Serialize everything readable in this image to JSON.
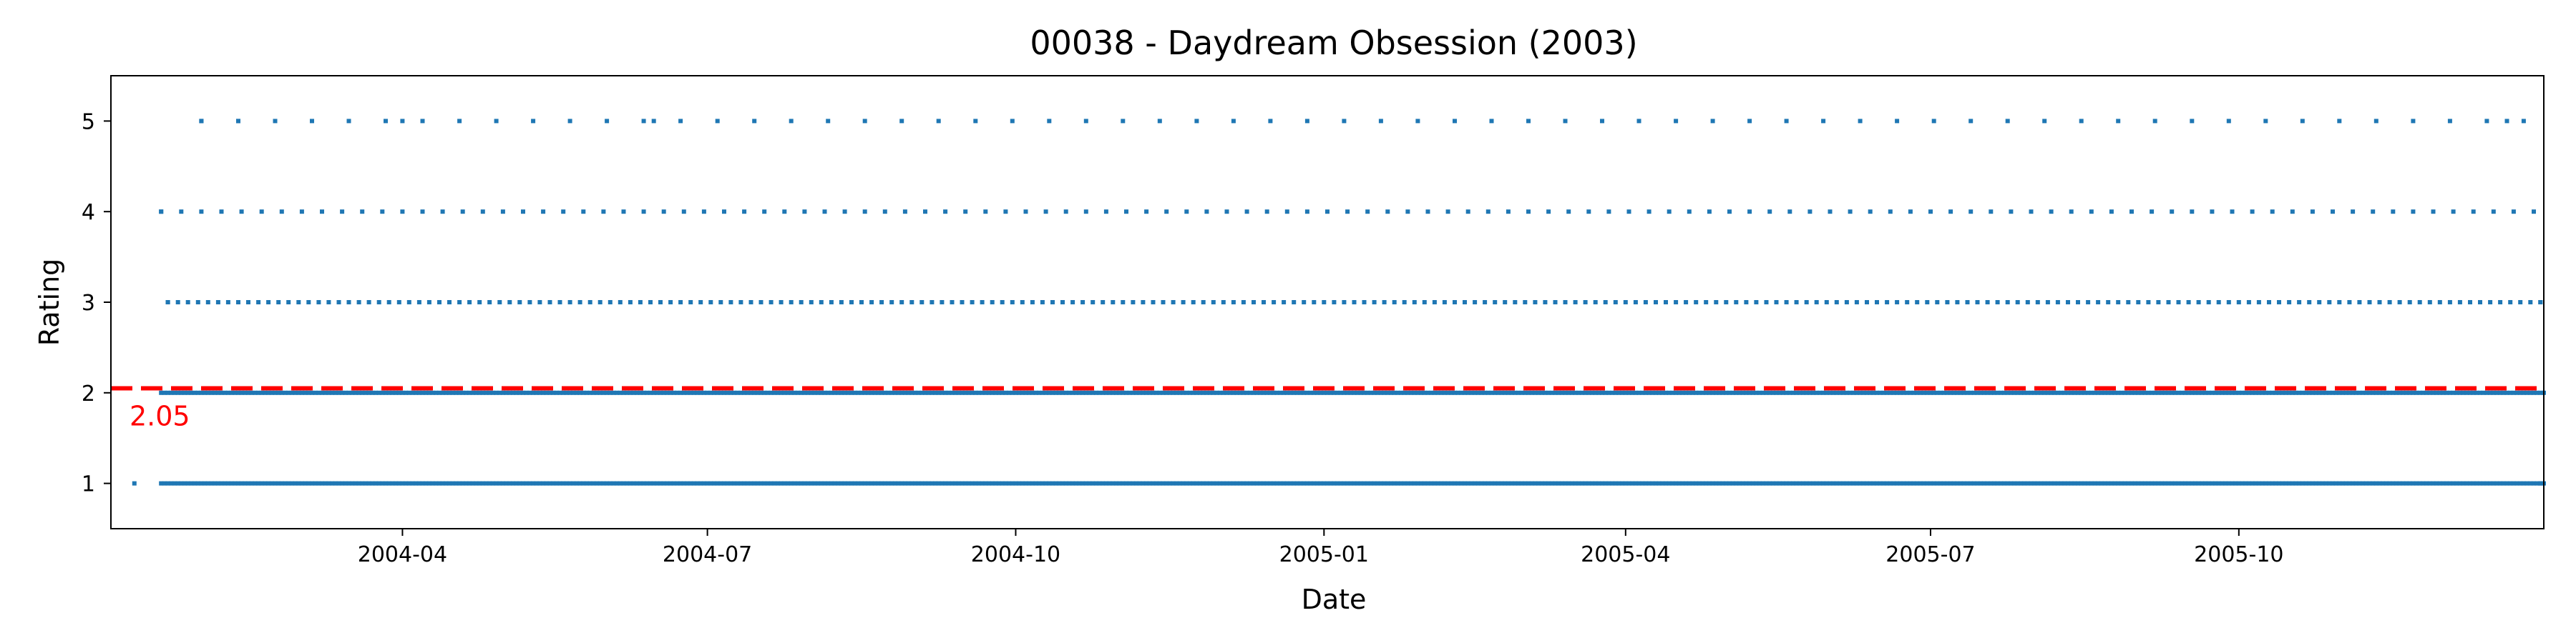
{
  "chart_data": {
    "type": "scatter",
    "title": "00038 - Daydream Obsession (2003)",
    "xlabel": "Date",
    "ylabel": "Rating",
    "xlim": [
      "2004-01-05",
      "2005-12-31"
    ],
    "ylim": [
      0.5,
      5.5
    ],
    "x_ticks": [
      {
        "date": "2004-04-01",
        "label": "2004-04"
      },
      {
        "date": "2004-07-01",
        "label": "2004-07"
      },
      {
        "date": "2004-10-01",
        "label": "2004-10"
      },
      {
        "date": "2005-01-01",
        "label": "2005-01"
      },
      {
        "date": "2005-04-01",
        "label": "2005-04"
      },
      {
        "date": "2005-07-01",
        "label": "2005-07"
      },
      {
        "date": "2005-10-01",
        "label": "2005-10"
      }
    ],
    "y_ticks": [
      1,
      2,
      3,
      4,
      5
    ],
    "grid": false,
    "point_color": "#1f77b4",
    "mean_line": {
      "value": 2.05,
      "label": "2.05",
      "color": "#ff0000",
      "style": "dashed"
    },
    "series": [
      {
        "ranges": [
          {
            "y": 5,
            "start": "2004-02-01",
            "end": "2005-12-31",
            "step": 11
          },
          {
            "y": 4,
            "start": "2004-01-20",
            "end": "2005-12-31",
            "step": 6
          },
          {
            "y": 3,
            "start": "2004-01-22",
            "end": "2005-12-31",
            "step": 3
          },
          {
            "y": 2,
            "start": "2004-01-20",
            "end": "2005-12-31",
            "step": 1
          },
          {
            "y": 1,
            "start": "2004-01-20",
            "end": "2005-12-31",
            "step": 1
          }
        ],
        "points": [
          {
            "x": "2004-01-12",
            "y": 1
          },
          {
            "x": "2004-01-20",
            "y": 4
          },
          {
            "x": "2004-01-22",
            "y": 3
          },
          {
            "x": "2004-02-01",
            "y": 5
          },
          {
            "x": "2004-02-12",
            "y": 5
          },
          {
            "x": "2004-04-01",
            "y": 5
          },
          {
            "x": "2004-06-15",
            "y": 5
          },
          {
            "x": "2005-12-20",
            "y": 5
          },
          {
            "x": "2005-12-30",
            "y": 3
          },
          {
            "x": "2005-12-30",
            "y": 1
          }
        ]
      }
    ]
  }
}
